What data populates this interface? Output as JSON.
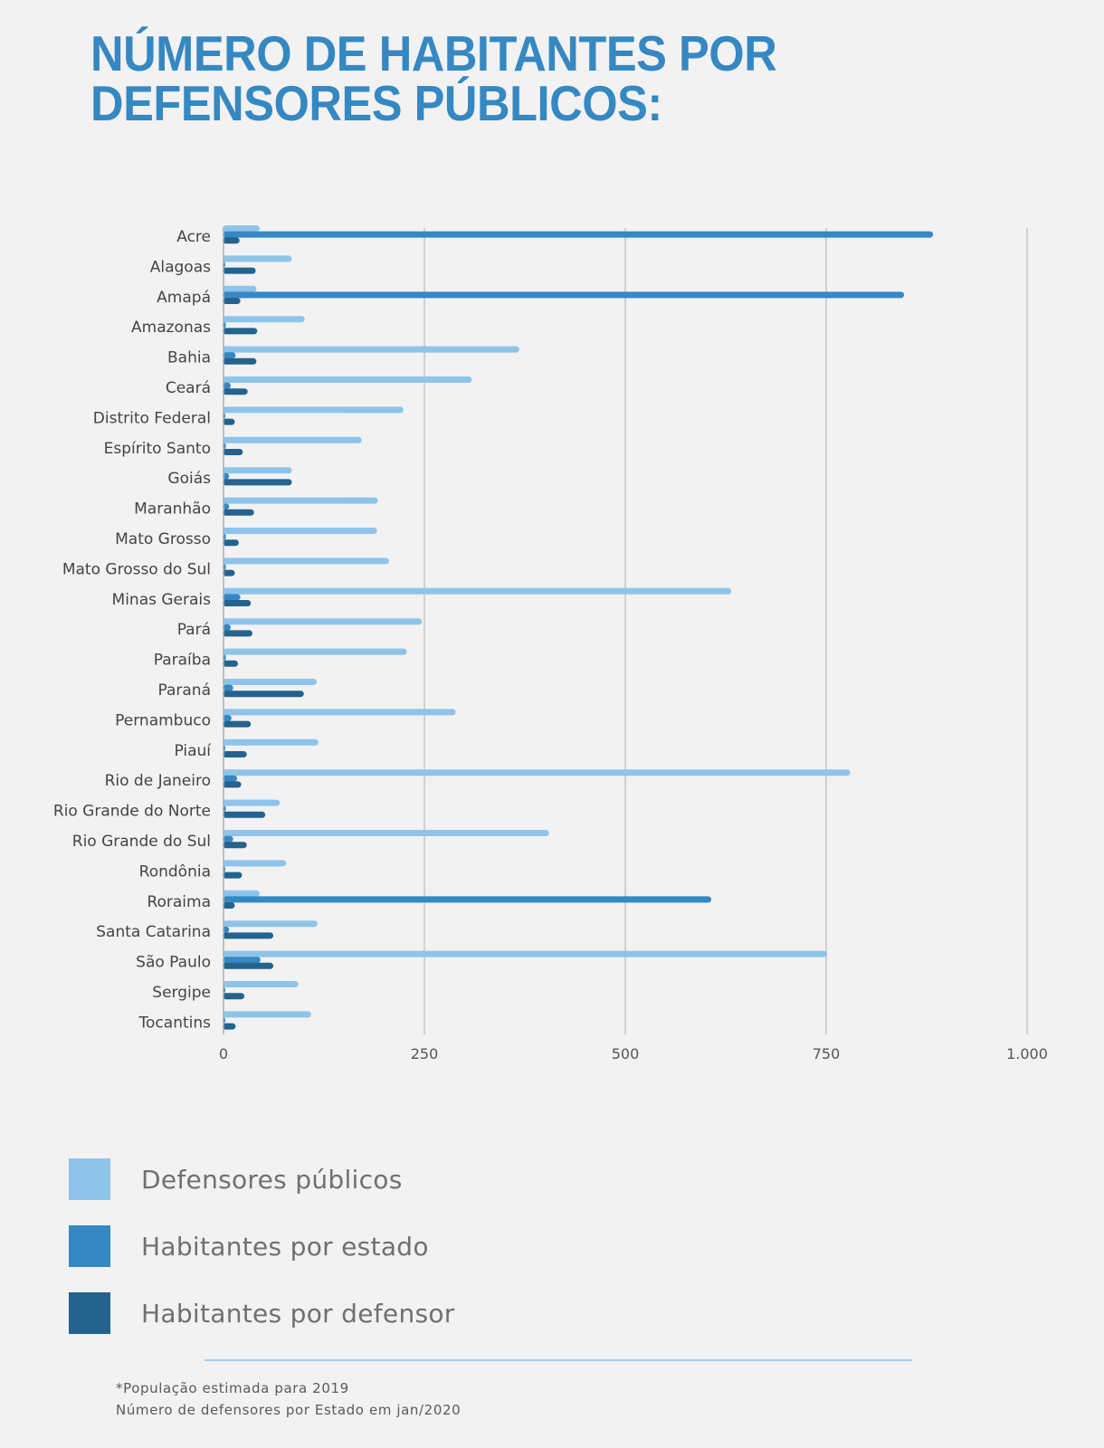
{
  "title_lines": [
    "Número de habitantes por",
    "defensores públicos:"
  ],
  "colors": {
    "background": "#f2f2f3",
    "title": "#3588c2",
    "defensores": "#8ec4ea",
    "habitantes_estado": "#3588c2",
    "habitantes_defensor": "#23638d",
    "grid": "#c4c4c4"
  },
  "legend": [
    {
      "label": "Defensores públicos",
      "color": "#8ec4ea"
    },
    {
      "label": "Habitantes por estado",
      "color": "#3588c2"
    },
    {
      "label": "Habitantes por defensor",
      "color": "#23638d"
    }
  ],
  "notes": [
    "*População estimada para 2019",
    "Número de defensores por Estado em jan/2020"
  ],
  "chart_data": {
    "type": "bar",
    "orientation": "horizontal",
    "categories": [
      "Acre",
      "Alagoas",
      "Amapá",
      "Amazonas",
      "Bahia",
      "Ceará",
      "Distrito Federal",
      "Espírito Santo",
      "Goiás",
      "Maranhão",
      "Mato Grosso",
      "Mato Grosso do Sul",
      "Minas Gerais",
      "Pará",
      "Paraíba",
      "Paraná",
      "Pernambuco",
      "Piauí",
      "Rio de Janeiro",
      "Rio Grande do Norte",
      "Rio Grande do Sul",
      "Rondônia",
      "Roraima",
      "Santa Catarina",
      "São Paulo",
      "Sergipe",
      "Tocantins"
    ],
    "series": [
      {
        "name": "Defensores públicos",
        "values": [
          45,
          85,
          41,
          101,
          368,
          309,
          224,
          172,
          85,
          192,
          191,
          206,
          632,
          247,
          228,
          116,
          289,
          118,
          780,
          70,
          405,
          78,
          45,
          117,
          751,
          93,
          109
        ]
      },
      {
        "name": "Habitantes por estado",
        "values": [
          883,
          2,
          847,
          3,
          15,
          9,
          2,
          3,
          7,
          7,
          3,
          3,
          21,
          9,
          3,
          12,
          10,
          2,
          17,
          3,
          12,
          2,
          607,
          7,
          46,
          2,
          2
        ]
      },
      {
        "name": "Habitantes por defensor",
        "values": [
          20,
          40,
          21,
          42,
          41,
          30,
          14,
          24,
          85,
          38,
          19,
          14,
          34,
          36,
          18,
          100,
          34,
          29,
          22,
          52,
          29,
          23,
          14,
          62,
          62,
          26,
          15
        ]
      }
    ],
    "xticks": [
      "0",
      "250",
      "500",
      "750",
      "1.000"
    ],
    "xlim": [
      0,
      1000
    ],
    "grid": true
  }
}
